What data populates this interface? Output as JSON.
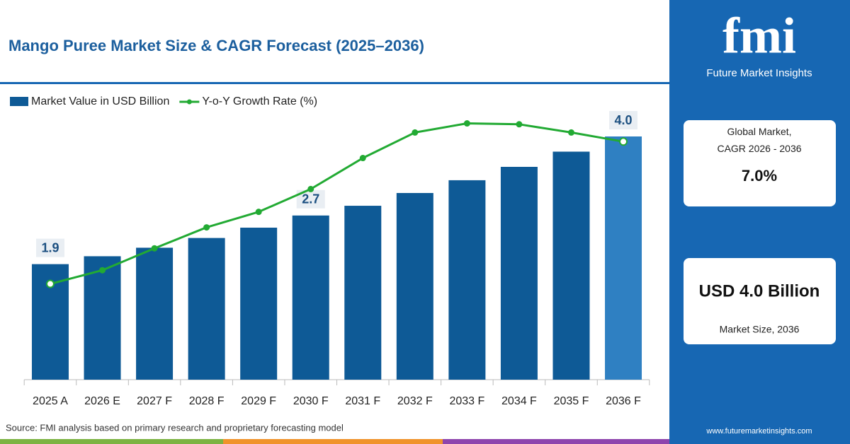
{
  "chart_data": {
    "type": "bar",
    "title": "Mango Puree Market Size & CAGR Forecast (2025–2036)",
    "source": "Source: FMI analysis based on primary research and proprietary forecasting model",
    "categories": [
      "2025 A",
      "2026 E",
      "2027 F",
      "2028 F",
      "2029 F",
      "2030 F",
      "2031 F",
      "2032 F",
      "2033 F",
      "2034 F",
      "2035 F",
      "2036 F"
    ],
    "series": [
      {
        "name": "Market Value in USD Billion",
        "type": "bar",
        "color": "#0e5a96",
        "highlight_color": "#2f80c2",
        "values": [
          1.9,
          2.03,
          2.17,
          2.33,
          2.5,
          2.7,
          2.86,
          3.07,
          3.28,
          3.5,
          3.75,
          4.0
        ],
        "value_labels": [
          "1.9",
          null,
          null,
          null,
          null,
          "2.7",
          null,
          null,
          null,
          null,
          null,
          "4.0"
        ]
      },
      {
        "name": "Y-o-Y Growth Rate (%)",
        "type": "line",
        "color": "#22aa33",
        "axis": "y2",
        "values": [
          6.05,
          6.2,
          6.44,
          6.67,
          6.84,
          7.09,
          7.43,
          7.71,
          7.81,
          7.8,
          7.71,
          7.61
        ]
      }
    ],
    "ylim": [
      0,
      4.5
    ],
    "y2lim": [
      5,
      8
    ],
    "legend": "top-left"
  },
  "brand": {
    "logo": "fmi",
    "name": "Future Market Insights",
    "url": "www.futuremarketinsights.com"
  },
  "highlights": [
    {
      "label": "Global Market,\nCAGR 2026 - 2036",
      "value": "7.0%"
    },
    {
      "value": "USD 4.0 Billion",
      "label": "Market Size, 2036"
    }
  ]
}
